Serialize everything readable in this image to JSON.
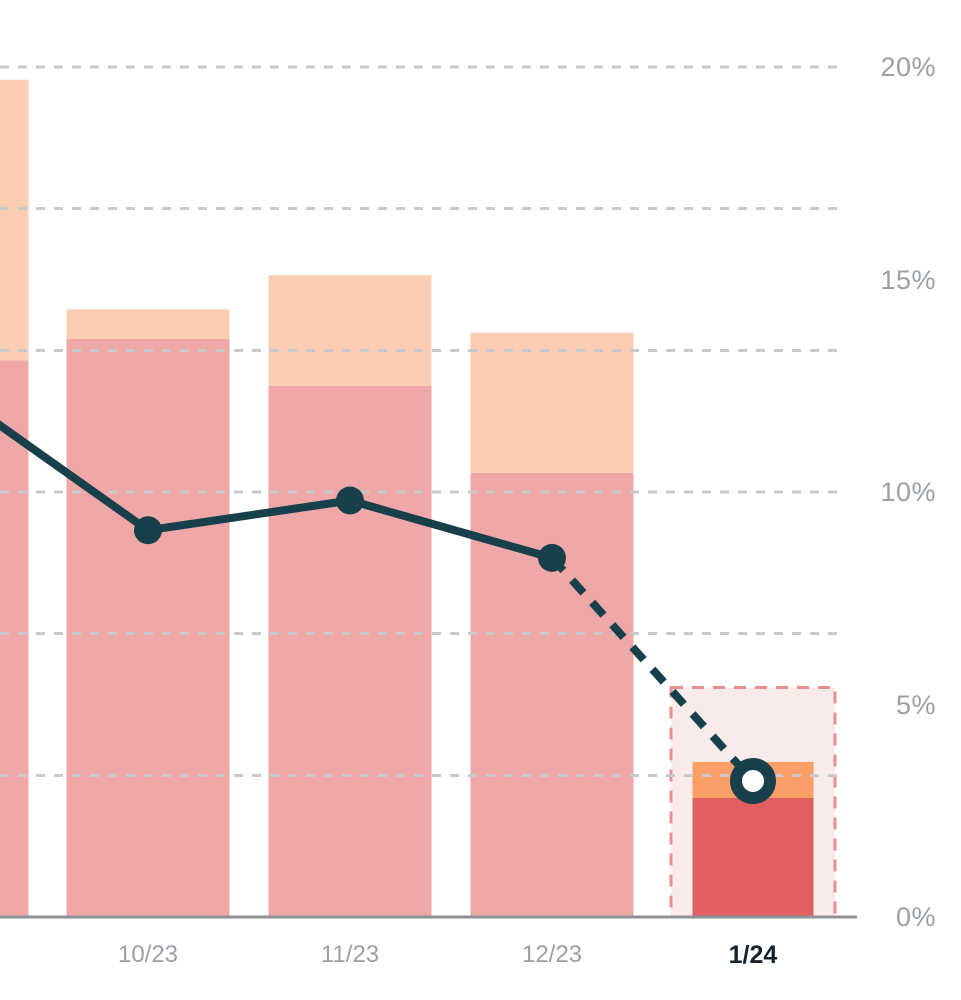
{
  "page": {
    "background": "#ffffff"
  },
  "axis": {
    "axis_line_color": "#8f9296",
    "grid_color": "#c8c9ca",
    "label_color": "#9aa0a5",
    "highlight_label_color": "#16232c"
  },
  "chart_data": {
    "type": "combo-stacked-bar-line",
    "title": "",
    "notes": "Leftmost bar is cropped by the image edge (its month label is not visible). Final month 1/24 is shown as a forecast: smaller saturated bar inside a dashed range box, line becomes dashed with a hollow marker.",
    "x_axis": {
      "categories": [
        "",
        "10/23",
        "11/23",
        "12/23",
        "1/24"
      ],
      "highlight_category": "1/24"
    },
    "y_axis": {
      "unit": "%",
      "min": 0,
      "max": 20,
      "tick_values": [
        20,
        15,
        10,
        5,
        0
      ],
      "tick_labels": [
        "20%",
        "15%",
        "10%",
        "5%",
        "0%"
      ],
      "gridline_values": [
        20,
        16.67,
        13.33,
        10,
        6.67,
        3.33
      ],
      "grid_style": "dashed"
    },
    "bars": {
      "stacked": true,
      "totals": [
        19.7,
        14.3,
        15.1,
        13.75,
        3.65
      ],
      "segments": [
        {
          "name": "lower-segment",
          "color": "#f0a7a7",
          "highlight_color": "#e15f5f",
          "values": [
            13.1,
            13.6,
            12.5,
            10.45,
            2.8
          ]
        },
        {
          "name": "upper-segment",
          "color": "#fccdb2",
          "highlight_color": "#fa9f68",
          "values": [
            6.6,
            0.7,
            2.6,
            3.3,
            0.85
          ]
        }
      ]
    },
    "line": {
      "color": "#17404b",
      "values": [
        12.45,
        9.1,
        9.8,
        8.45,
        3.2
      ],
      "solid_through_index": 3,
      "forecast_index": 4,
      "marker": "filled-circle",
      "forecast_marker": "hollow-circle"
    },
    "forecast_box": {
      "category": "1/24",
      "top_value": 5.4,
      "fill": "#faebeb",
      "border_color": "#e98f90",
      "border_style": "dashed"
    }
  }
}
